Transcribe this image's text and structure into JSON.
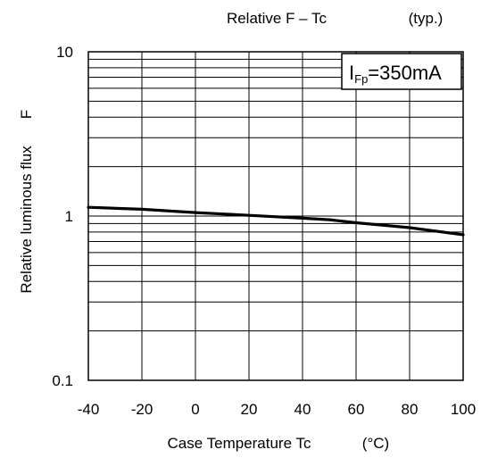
{
  "chart_data": {
    "type": "line",
    "title": "Relative F – Tc",
    "title_note": "(typ.)",
    "xlabel": "Case Temperature Tc",
    "xlabel_unit": "(°C)",
    "ylabel": "Relative luminous flux",
    "ylabel_symbol": "F",
    "x_scale": "linear",
    "y_scale": "log",
    "xlim": [
      -40,
      100
    ],
    "ylim": [
      0.1,
      10
    ],
    "x_ticks": [
      -40,
      -20,
      0,
      20,
      40,
      60,
      80,
      100
    ],
    "x_tick_labels": [
      "-40",
      "-20",
      "0",
      "20",
      "40",
      "60",
      "80",
      "100"
    ],
    "y_tick_labels": [
      "0.1",
      "1",
      "10"
    ],
    "y_ticks": [
      0.1,
      1,
      10
    ],
    "grid": true,
    "annotation": {
      "main": "I",
      "subscript": "Fp",
      "rest": "=350mA",
      "position": "top-right"
    },
    "series": [
      {
        "x": [
          -40,
          -20,
          0,
          20,
          40,
          50,
          60,
          80,
          100
        ],
        "y": [
          1.13,
          1.1,
          1.05,
          1.01,
          0.97,
          0.95,
          0.91,
          0.85,
          0.77
        ],
        "color": "#000000"
      }
    ]
  }
}
